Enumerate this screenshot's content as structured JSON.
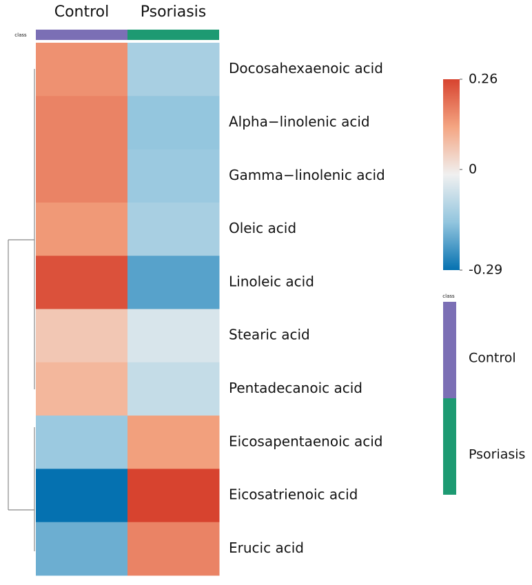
{
  "chart_data": {
    "type": "heatmap",
    "columns": [
      "Control",
      "Psoriasis"
    ],
    "rows": [
      "Docosahexaenoic acid",
      "Alpha−linolenic acid",
      "Gamma−linolenic acid",
      "Oleic acid",
      "Linoleic acid",
      "Stearic acid",
      "Pentadecanoic acid",
      "Eicosapentaenoic acid",
      "Eicosatrienoic acid",
      "Erucic acid"
    ],
    "values": [
      [
        0.15,
        -0.12
      ],
      [
        0.17,
        -0.15
      ],
      [
        0.17,
        -0.14
      ],
      [
        0.14,
        -0.12
      ],
      [
        0.24,
        -0.21
      ],
      [
        0.06,
        -0.05
      ],
      [
        0.09,
        -0.08
      ],
      [
        -0.14,
        0.13
      ],
      [
        -0.29,
        0.26
      ],
      [
        -0.19,
        0.17
      ]
    ],
    "colormap": [
      "#0571b0",
      "#92c5de",
      "#f0f0f0",
      "#f4a582",
      "#d7432f"
    ],
    "colorbar": {
      "lim": [
        -0.29,
        0.26
      ],
      "ticks": [
        0.26,
        0,
        -0.29
      ]
    },
    "class_bar_label": "class",
    "class_legend": {
      "title": "class",
      "series": [
        {
          "name": "Control",
          "color": "#7b6fb5"
        },
        {
          "name": "Psoriasis",
          "color": "#1d9a72"
        }
      ]
    }
  }
}
